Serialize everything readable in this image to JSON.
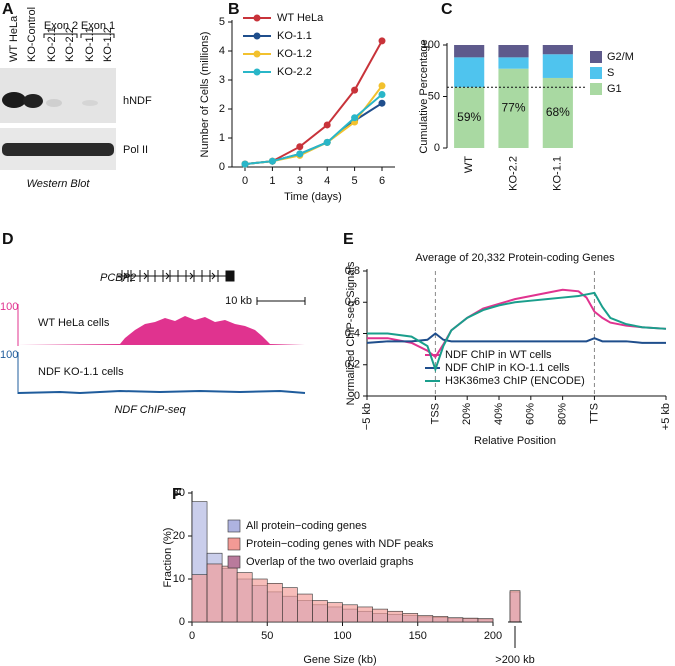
{
  "panel_a": {
    "label": "A",
    "lanes": [
      "WT HeLa",
      "KO-Control",
      "KO-2.1",
      "KO-2.2",
      "KO-1.1",
      "KO-1.2"
    ],
    "groups": [
      "Exon 2",
      "Exon 1"
    ],
    "bands": [
      "hNDF",
      "Pol II"
    ],
    "caption": "Western Blot"
  },
  "panel_d": {
    "label": "D",
    "gene": "PCBP2",
    "scale": "10 kb",
    "tracks": [
      {
        "name": "WT HeLa cells",
        "max": "100"
      },
      {
        "name": "NDF KO-1.1 cells",
        "max": "100"
      }
    ],
    "caption": "NDF ChIP-seq"
  },
  "chart_data": [
    {
      "type": "line",
      "label": "B",
      "xlabel": "Time (days)",
      "ylabel": "Number of Cells (millions)",
      "categories": [
        "0",
        "1",
        "3",
        "4",
        "5",
        "6"
      ],
      "ylim": [
        0,
        5
      ],
      "yticks": [
        0,
        1,
        2,
        3,
        4,
        5
      ],
      "series": [
        {
          "name": "WT HeLa",
          "color": "#c8333a",
          "values": [
            0.1,
            0.2,
            0.7,
            1.45,
            2.65,
            4.35
          ]
        },
        {
          "name": "KO-1.1",
          "color": "#1f4e8c",
          "values": [
            0.1,
            0.2,
            0.45,
            0.85,
            1.6,
            2.2
          ]
        },
        {
          "name": "KO-1.2",
          "color": "#f2c12e",
          "values": [
            0.1,
            0.2,
            0.4,
            0.85,
            1.55,
            2.8
          ]
        },
        {
          "name": "KO-2.2",
          "color": "#29b6c8",
          "values": [
            0.1,
            0.2,
            0.45,
            0.85,
            1.7,
            2.5
          ]
        }
      ]
    },
    {
      "type": "stacked_bar",
      "label": "C",
      "ylabel": "Cumulative Percentage",
      "categories": [
        "WT",
        "KO-2.2",
        "KO-1.1"
      ],
      "ylim": [
        0,
        100
      ],
      "yticks": [
        0,
        50,
        100
      ],
      "reference_line": 59,
      "series": [
        {
          "name": "G1",
          "color": "#a9d9a2",
          "values": [
            59,
            77,
            68
          ],
          "value_labels": [
            "59%",
            "77%",
            "68%"
          ]
        },
        {
          "name": "S",
          "color": "#4fc4ee",
          "values": [
            29,
            11,
            23
          ]
        },
        {
          "name": "G2/M",
          "color": "#5e5a8c",
          "values": [
            12,
            12,
            9
          ]
        }
      ]
    },
    {
      "type": "line",
      "label": "E",
      "title": "Average of 20,332 Protein-coding Genes",
      "xlabel": "Relative Position",
      "ylabel": "Normalized ChIP-seq Signals",
      "x": [
        -43,
        -30,
        -15,
        -5,
        0,
        5,
        10,
        20,
        30,
        40,
        50,
        60,
        70,
        80,
        90,
        95,
        100,
        105,
        110,
        120,
        130,
        145
      ],
      "xlim": [
        -43,
        145
      ],
      "xticks": [
        {
          "value": -43,
          "label": "−5 kb"
        },
        {
          "value": 0,
          "label": "TSS"
        },
        {
          "value": 20,
          "label": "20%"
        },
        {
          "value": 40,
          "label": "40%"
        },
        {
          "value": 60,
          "label": "60%"
        },
        {
          "value": 80,
          "label": "80%"
        },
        {
          "value": 100,
          "label": "TTS"
        },
        {
          "value": 145,
          "label": "+5 kb"
        }
      ],
      "vlines": [
        0,
        100
      ],
      "ylim": [
        0,
        0.8
      ],
      "yticks": [
        0,
        0.2,
        0.4,
        0.6,
        0.8
      ],
      "series": [
        {
          "name": "NDF ChIP in WT cells",
          "color": "#e0338f",
          "values": [
            0.37,
            0.37,
            0.34,
            0.29,
            0.25,
            0.33,
            0.42,
            0.5,
            0.56,
            0.59,
            0.62,
            0.64,
            0.66,
            0.68,
            0.67,
            0.63,
            0.54,
            0.5,
            0.47,
            0.45,
            0.44,
            0.43
          ]
        },
        {
          "name": "NDF ChIP in KO-1.1 cells",
          "color": "#1f4e8c",
          "values": [
            0.34,
            0.35,
            0.35,
            0.36,
            0.4,
            0.36,
            0.35,
            0.35,
            0.35,
            0.35,
            0.35,
            0.35,
            0.35,
            0.35,
            0.35,
            0.35,
            0.37,
            0.35,
            0.35,
            0.35,
            0.34,
            0.34
          ]
        },
        {
          "name": "H3K36me3 ChIP (ENCODE)",
          "color": "#1a9e8c",
          "values": [
            0.4,
            0.4,
            0.38,
            0.32,
            0.17,
            0.32,
            0.42,
            0.5,
            0.55,
            0.58,
            0.6,
            0.61,
            0.62,
            0.63,
            0.64,
            0.65,
            0.66,
            0.57,
            0.5,
            0.46,
            0.44,
            0.43
          ]
        }
      ]
    },
    {
      "type": "histogram",
      "label": "F",
      "xlabel": "Gene Size (kb)",
      "ylabel": "Fraction (%)",
      "bins": [
        0,
        10,
        20,
        30,
        40,
        50,
        60,
        70,
        80,
        90,
        100,
        110,
        120,
        130,
        140,
        150,
        160,
        170,
        180,
        190,
        200
      ],
      "xlim": [
        0,
        200
      ],
      "xticks": [
        0,
        50,
        100,
        150,
        200
      ],
      "ylim": [
        0,
        30
      ],
      "yticks": [
        0,
        10,
        20,
        30
      ],
      "overflow_label": ">200 kb",
      "series": [
        {
          "name": "All protein−coding genes",
          "color": "#aeb3e0",
          "values": [
            28,
            16,
            12.5,
            10,
            8.5,
            7,
            6,
            5,
            4,
            3.5,
            3,
            2.5,
            2,
            1.8,
            1.5,
            1.2,
            1,
            0.9,
            0.8,
            0.7
          ],
          "overflow_value": 7
        },
        {
          "name": "Protein−coding genes with NDF peaks",
          "color": "#f29a95",
          "values": [
            11,
            13.5,
            13,
            11.5,
            10,
            9,
            8,
            6.5,
            5,
            4.5,
            4,
            3.5,
            3,
            2.5,
            2,
            1.5,
            1.3,
            1,
            0.9,
            0.8
          ],
          "overflow_value": 7.3
        }
      ],
      "overlap_legend": {
        "name": "Overlap of the two overlaid graphs",
        "color": "#b97a9c"
      }
    }
  ]
}
